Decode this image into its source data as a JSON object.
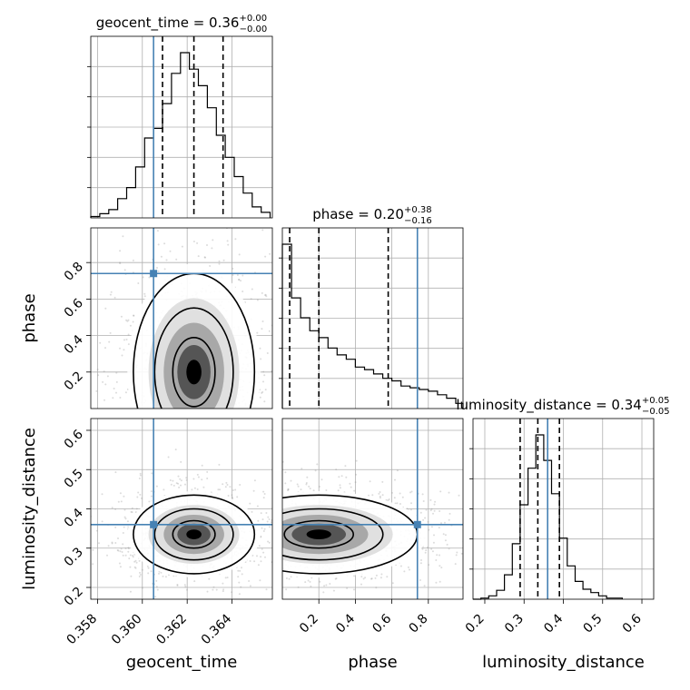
{
  "chart_data": {
    "type": "corner",
    "parameters": [
      "geocent_time",
      "phase",
      "luminosity_distance"
    ],
    "titles": {
      "geocent_time": {
        "name": "geocent_time",
        "median": "0.36",
        "plus": "+0.00",
        "minus": "−0.00"
      },
      "phase": {
        "name": "phase",
        "median": "0.20",
        "plus": "+0.38",
        "minus": "−0.16"
      },
      "luminosity_distance": {
        "name": "luminosity_distance",
        "median": "0.34",
        "plus": "+0.05",
        "minus": "−0.05"
      }
    },
    "ranges": {
      "geocent_time": [
        0.3577,
        0.3658
      ],
      "phase": [
        0.0,
        0.99
      ],
      "luminosity_distance": [
        0.17,
        0.63
      ]
    },
    "ticks": {
      "geocent_time": [
        "0.358",
        "0.360",
        "0.362",
        "0.364"
      ],
      "phase": [
        "0.2",
        "0.4",
        "0.6",
        "0.8"
      ],
      "luminosity_distance": [
        "0.2",
        "0.3",
        "0.4",
        "0.5",
        "0.6"
      ]
    },
    "truths": {
      "geocent_time": 0.3605,
      "phase": 0.74,
      "luminosity_distance": 0.36
    },
    "quantiles": {
      "geocent_time": [
        0.3609,
        0.3623,
        0.3636
      ],
      "phase": [
        0.04,
        0.2,
        0.58
      ],
      "luminosity_distance": [
        0.29,
        0.335,
        0.39
      ]
    },
    "histograms": {
      "geocent_time": {
        "edges": [
          0.3577,
          0.3581,
          0.3585,
          0.3589,
          0.3593,
          0.3597,
          0.3601,
          0.3605,
          0.3609,
          0.3613,
          0.3617,
          0.3621,
          0.3625,
          0.3629,
          0.3633,
          0.3637,
          0.3641,
          0.3645,
          0.3649,
          0.3653,
          0.3657
        ],
        "counts": [
          1,
          3,
          6,
          14,
          22,
          37,
          58,
          65,
          83,
          105,
          120,
          108,
          96,
          80,
          60,
          44,
          30,
          18,
          8,
          4
        ]
      },
      "phase": {
        "edges": [
          0.0,
          0.05,
          0.1,
          0.15,
          0.2,
          0.25,
          0.3,
          0.35,
          0.4,
          0.45,
          0.5,
          0.55,
          0.6,
          0.65,
          0.7,
          0.75,
          0.8,
          0.85,
          0.9,
          0.95,
          0.99
        ],
        "counts": [
          190,
          128,
          105,
          90,
          82,
          70,
          62,
          57,
          48,
          45,
          40,
          35,
          32,
          26,
          24,
          22,
          20,
          16,
          12,
          6
        ]
      },
      "luminosity_distance": {
        "edges": [
          0.17,
          0.19,
          0.21,
          0.23,
          0.25,
          0.27,
          0.29,
          0.31,
          0.33,
          0.35,
          0.37,
          0.39,
          0.41,
          0.43,
          0.45,
          0.47,
          0.49,
          0.51,
          0.53,
          0.55
        ],
        "counts": [
          0,
          1,
          3,
          8,
          22,
          50,
          85,
          118,
          148,
          125,
          95,
          55,
          30,
          16,
          9,
          6,
          3,
          1,
          1
        ]
      }
    },
    "pairs": [
      {
        "x": "geocent_time",
        "y": "phase"
      },
      {
        "x": "geocent_time",
        "y": "luminosity_distance"
      },
      {
        "x": "phase",
        "y": "luminosity_distance"
      }
    ],
    "colors": {
      "truth": "#4682b4",
      "hist": "#000000",
      "quantile": "#000000",
      "density": "#000000",
      "points": "#9a9a9a"
    }
  }
}
